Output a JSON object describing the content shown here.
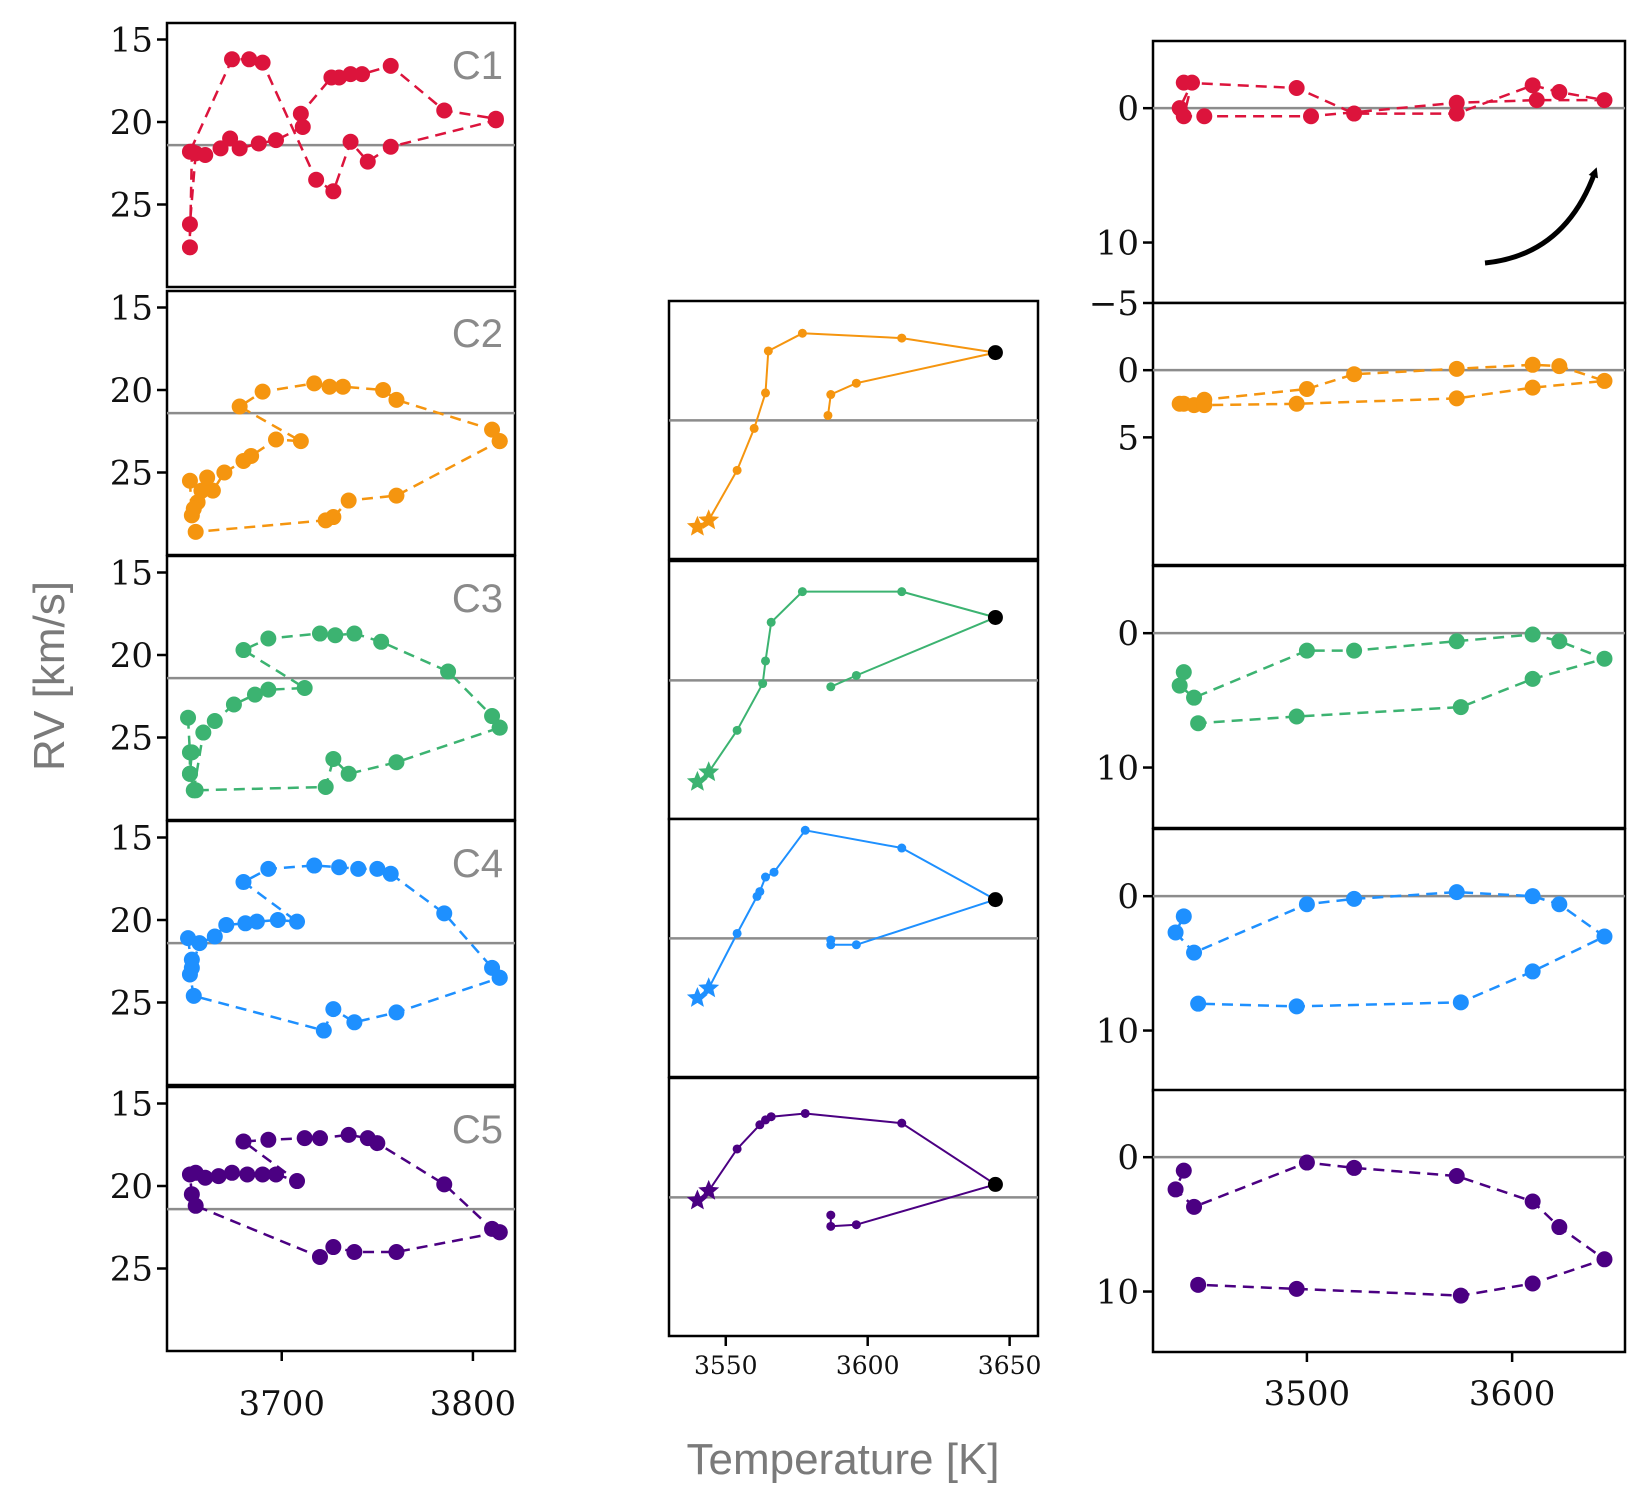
{
  "xlabel": "Temperature [K]",
  "ylabel": "RV [km/s]",
  "panel_tags": [
    "C1",
    "C2",
    "C3",
    "C4",
    "C5"
  ],
  "colors": [
    "#dc143c",
    "#f5950f",
    "#3cb371",
    "#1e90ff",
    "#4b0082"
  ],
  "chart_data": [
    {
      "type": "line",
      "column": "left",
      "xlim": [
        3640,
        3822
      ],
      "xticks": [
        3700,
        3800
      ],
      "ylim": [
        30,
        14
      ],
      "yticks": [
        15,
        20,
        25
      ],
      "reference_line": 21.4,
      "line_style": "dashed",
      "marker": "circle",
      "series": [
        {
          "label": "C1",
          "color_index": 0,
          "x": [
            3655,
            3652,
            3652,
            3653,
            3660,
            3668,
            3673,
            3678,
            3688,
            3697,
            3711,
            3710,
            3726,
            3730,
            3736,
            3742,
            3757,
            3785,
            3812,
            3812,
            3757,
            3745,
            3736,
            3727,
            3718,
            3690,
            3683,
            3674,
            3652
          ],
          "y": [
            21.9,
            26.2,
            27.6,
            21.8,
            22.0,
            21.6,
            21.0,
            21.6,
            21.3,
            21.1,
            20.3,
            19.5,
            17.3,
            17.3,
            17.1,
            17.1,
            16.6,
            19.3,
            19.8,
            19.9,
            21.5,
            22.4,
            21.2,
            24.2,
            23.5,
            16.4,
            16.2,
            16.2,
            21.8
          ]
        },
        {
          "label": "C2",
          "color_index": 1,
          "x": [
            3652,
            3653,
            3656,
            3664,
            3670,
            3680,
            3684,
            3697,
            3710,
            3678,
            3690,
            3717,
            3725,
            3732,
            3753,
            3760,
            3810,
            3814,
            3814,
            3760,
            3735,
            3727,
            3723,
            3655,
            3654,
            3658,
            3661
          ],
          "y": [
            25.5,
            27.6,
            26.8,
            26.1,
            25.0,
            24.3,
            24.0,
            23.0,
            23.1,
            21.0,
            20.1,
            19.6,
            19.8,
            19.8,
            20.0,
            20.6,
            22.4,
            23.1,
            23.1,
            26.4,
            26.7,
            27.7,
            27.9,
            28.6,
            27.2,
            26.1,
            25.3
          ]
        },
        {
          "label": "C3",
          "color_index": 2,
          "x": [
            3651,
            3652,
            3652,
            3654,
            3659,
            3665,
            3675,
            3686,
            3693,
            3712,
            3680,
            3693,
            3720,
            3728,
            3738,
            3752,
            3787,
            3810,
            3814,
            3814,
            3760,
            3735,
            3727,
            3723,
            3655,
            3652,
            3653
          ],
          "y": [
            23.8,
            25.9,
            27.2,
            28.2,
            24.7,
            24.0,
            23.0,
            22.4,
            22.1,
            22.0,
            19.7,
            19.0,
            18.7,
            18.8,
            18.7,
            19.2,
            21.0,
            23.7,
            24.4,
            24.4,
            26.5,
            27.2,
            26.3,
            28.0,
            28.2,
            27.2,
            25.9
          ]
        },
        {
          "label": "C4",
          "color_index": 3,
          "x": [
            3651,
            3653,
            3657,
            3665,
            3671,
            3681,
            3687,
            3698,
            3708,
            3680,
            3693,
            3717,
            3730,
            3740,
            3750,
            3757,
            3785,
            3810,
            3814,
            3814,
            3760,
            3738,
            3727,
            3722,
            3654,
            3652,
            3653
          ],
          "y": [
            21.1,
            22.9,
            21.4,
            21.0,
            20.3,
            20.2,
            20.1,
            20.0,
            20.1,
            17.7,
            16.9,
            16.7,
            16.8,
            16.9,
            16.9,
            17.2,
            19.6,
            22.9,
            23.5,
            23.5,
            25.6,
            26.2,
            25.4,
            26.7,
            24.6,
            23.3,
            22.4
          ]
        },
        {
          "label": "C5",
          "color_index": 4,
          "x": [
            3653,
            3652,
            3655,
            3660,
            3667,
            3674,
            3682,
            3690,
            3697,
            3708,
            3680,
            3693,
            3712,
            3720,
            3735,
            3745,
            3750,
            3785,
            3810,
            3814,
            3814,
            3760,
            3738,
            3727,
            3720,
            3655
          ],
          "y": [
            20.5,
            19.3,
            19.2,
            19.5,
            19.4,
            19.2,
            19.3,
            19.3,
            19.3,
            19.7,
            17.3,
            17.2,
            17.1,
            17.1,
            16.9,
            17.1,
            17.4,
            19.9,
            22.6,
            22.8,
            22.8,
            24.0,
            24.0,
            23.7,
            24.3,
            21.2
          ]
        }
      ]
    },
    {
      "type": "line",
      "column": "middle",
      "xlim": [
        3530,
        3660
      ],
      "xticks": [
        3550,
        3600,
        3650
      ],
      "ylim": [
        30,
        14
      ],
      "yticks": [],
      "reference_line": 21.4,
      "line_style": "solid",
      "marker": "small-circle",
      "series": [
        {
          "label": "C2",
          "color_index": 1,
          "x": [
            3540,
            3544,
            3554,
            3560,
            3564,
            3565,
            3577,
            3612,
            3645,
            3596,
            3587,
            3586
          ],
          "y": [
            28.0,
            27.6,
            24.5,
            21.9,
            19.7,
            17.1,
            16.0,
            16.3,
            17.2,
            19.1,
            19.8,
            21.1
          ],
          "end_marker": {
            "x": 3645,
            "y": 17.2
          },
          "start_markers": [
            {
              "x": 3540,
              "y": 28.0
            },
            {
              "x": 3544,
              "y": 27.6
            }
          ]
        },
        {
          "label": "C3",
          "color_index": 2,
          "x": [
            3540,
            3544,
            3554,
            3563,
            3564,
            3566,
            3577,
            3612,
            3645,
            3596,
            3587
          ],
          "y": [
            27.7,
            27.1,
            24.5,
            21.6,
            20.2,
            17.8,
            15.9,
            15.9,
            17.5,
            21.1,
            21.8
          ],
          "end_marker": {
            "x": 3645,
            "y": 17.5
          },
          "start_markers": [
            {
              "x": 3540,
              "y": 27.7
            },
            {
              "x": 3544,
              "y": 27.1
            }
          ]
        },
        {
          "label": "C4",
          "color_index": 3,
          "x": [
            3540,
            3544,
            3554,
            3561,
            3562,
            3564,
            3567,
            3578,
            3612,
            3645,
            3596,
            3587,
            3587
          ],
          "y": [
            25.1,
            24.5,
            21.1,
            18.8,
            18.5,
            17.6,
            17.3,
            14.7,
            15.8,
            19.0,
            21.8,
            21.8,
            21.5
          ],
          "end_marker": {
            "x": 3645,
            "y": 19.0
          },
          "start_markers": [
            {
              "x": 3540,
              "y": 25.1
            },
            {
              "x": 3544,
              "y": 24.5
            }
          ]
        },
        {
          "label": "C5",
          "color_index": 4,
          "x": [
            3540,
            3544,
            3554,
            3562,
            3564,
            3566,
            3578,
            3612,
            3645,
            3596,
            3587,
            3587
          ],
          "y": [
            21.6,
            21.0,
            18.4,
            16.9,
            16.6,
            16.4,
            16.2,
            16.8,
            20.6,
            23.1,
            23.2,
            22.5
          ],
          "end_marker": {
            "x": 3645,
            "y": 20.6
          },
          "start_markers": [
            {
              "x": 3540,
              "y": 21.6
            },
            {
              "x": 3544,
              "y": 21.0
            }
          ]
        }
      ]
    },
    {
      "type": "line",
      "column": "right",
      "xlim": [
        3425,
        3655
      ],
      "xticks": [
        3500,
        3600
      ],
      "ylim": [
        14.5,
        -5
      ],
      "yticks": [
        0,
        5,
        10
      ],
      "tick_labels_per_panel": [
        [
          "0",
          "10",
          "−5"
        ],
        [
          "0",
          "5"
        ],
        [
          "0",
          "10"
        ],
        [
          "0",
          "10"
        ],
        [
          "0",
          "10"
        ]
      ],
      "reference_line": 0,
      "line_style": "dashed",
      "marker": "circle",
      "series": [
        {
          "label": "C1",
          "color_index": 0,
          "x": [
            3440,
            3495,
            3523,
            3573,
            3610,
            3623,
            3645,
            3612,
            3573,
            3502,
            3450,
            3440,
            3444,
            3438
          ],
          "y": [
            -1.9,
            -1.5,
            0.4,
            0.4,
            -1.7,
            -1.2,
            -0.6,
            -0.6,
            -0.4,
            0.6,
            0.6,
            0.6,
            -1.9,
            0.0
          ]
        },
        {
          "label": "C2",
          "color_index": 1,
          "x": [
            3440,
            3445,
            3450,
            3500,
            3523,
            3573,
            3610,
            3623,
            3645,
            3610,
            3573,
            3495,
            3450,
            3438
          ],
          "y": [
            2.5,
            2.6,
            2.2,
            1.4,
            0.3,
            -0.1,
            -0.4,
            -0.3,
            0.8,
            1.3,
            2.1,
            2.5,
            2.6,
            2.5
          ]
        },
        {
          "label": "C3",
          "color_index": 2,
          "x": [
            3440,
            3438,
            3445,
            3500,
            3523,
            3573,
            3610,
            3623,
            3645,
            3610,
            3575,
            3495,
            3447
          ],
          "y": [
            2.9,
            3.9,
            4.8,
            1.3,
            1.3,
            0.6,
            0.1,
            0.6,
            1.9,
            3.4,
            5.5,
            6.2,
            6.7
          ]
        },
        {
          "label": "C4",
          "color_index": 3,
          "x": [
            3440,
            3436,
            3445,
            3500,
            3523,
            3573,
            3610,
            3623,
            3645,
            3610,
            3575,
            3495,
            3447
          ],
          "y": [
            1.5,
            2.7,
            4.2,
            0.6,
            0.2,
            -0.3,
            0.0,
            0.6,
            3.0,
            5.6,
            7.9,
            8.2,
            8.0
          ]
        },
        {
          "label": "C5",
          "color_index": 4,
          "x": [
            3440,
            3436,
            3445,
            3500,
            3523,
            3573,
            3610,
            3623,
            3645,
            3610,
            3575,
            3495,
            3447
          ],
          "y": [
            1.0,
            2.4,
            3.7,
            0.4,
            0.8,
            1.4,
            3.3,
            5.2,
            7.6,
            9.4,
            10.3,
            9.8,
            9.5
          ]
        }
      ]
    }
  ]
}
